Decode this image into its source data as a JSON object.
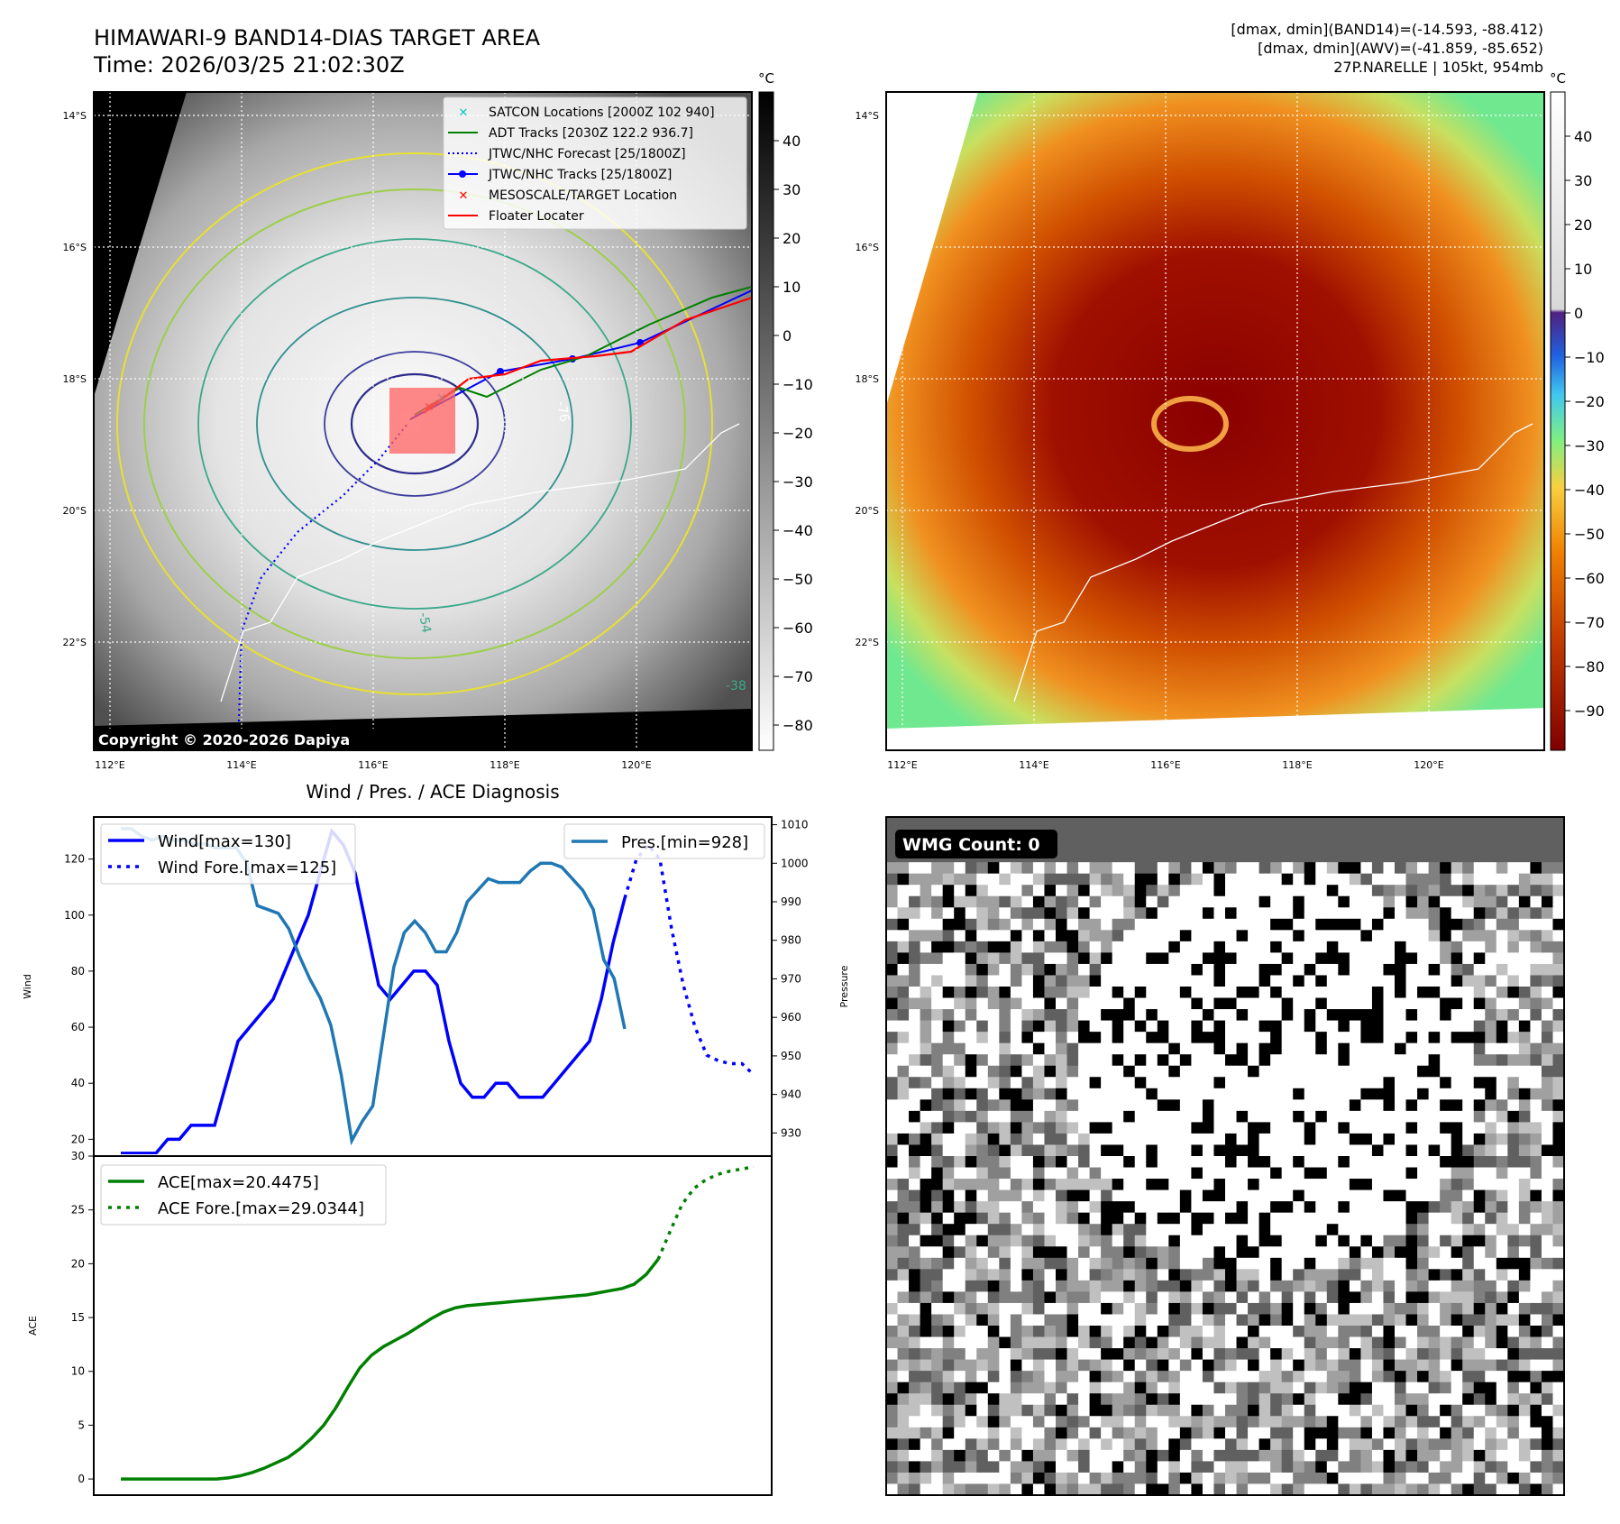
{
  "header": {
    "title_line1": "HIMAWARI-9 BAND14-DIAS TARGET AREA",
    "title_line2": "Time: 2026/03/25 21:02:30Z",
    "right_line1": "[dmax, dmin](BAND14)=(-14.593, -88.412)",
    "right_line2": "[dmax, dmin](AWV)=(-41.859, -85.652)",
    "right_line3": "27P.NARELLE | 105kt, 954mb"
  },
  "map_axes": {
    "lat_ticks": [
      "14°S",
      "16°S",
      "18°S",
      "20°S",
      "22°S"
    ],
    "lon_ticks": [
      "112°E",
      "114°E",
      "116°E",
      "118°E",
      "120°E"
    ]
  },
  "left_map": {
    "copyright": "Copyright © 2020-2026 Dapiya",
    "contour_labels": [
      "-76",
      "-54",
      "-38"
    ],
    "legend": [
      {
        "label": "SATCON Locations [2000Z 102 940]",
        "color": "#00c8c8",
        "marker": "x"
      },
      {
        "label": "ADT Tracks [2030Z 122.2 936.7]",
        "color": "#008000",
        "marker": "line"
      },
      {
        "label": "JTWC/NHC Forecast [25/1800Z]",
        "color": "#0000ff",
        "marker": "dotted"
      },
      {
        "label": "JTWC/NHC Tracks [25/1800Z]",
        "color": "#0000ff",
        "marker": "line-dot"
      },
      {
        "label": "MESOSCALE/TARGET Location",
        "color": "#ff0000",
        "marker": "x"
      },
      {
        "label": "Floater Locater",
        "color": "#ff0000",
        "marker": "line"
      }
    ]
  },
  "colorbar_gray": {
    "unit": "°C",
    "ticks": [
      "40",
      "30",
      "20",
      "10",
      "0",
      "−10",
      "−20",
      "−30",
      "−40",
      "−50",
      "−60",
      "−70",
      "−80"
    ]
  },
  "colorbar_color": {
    "unit": "°C",
    "ticks": [
      "40",
      "30",
      "20",
      "10",
      "0",
      "−10",
      "−20",
      "−30",
      "−40",
      "−50",
      "−60",
      "−70",
      "−80",
      "−90"
    ]
  },
  "wmg": {
    "label": "WMG Count: 0"
  },
  "chart_data": [
    {
      "type": "line",
      "title": "Wind / Pres. / ACE Diagnosis",
      "ylabel": "Wind",
      "y2label": "Pressure",
      "ylim": [
        14,
        135
      ],
      "y2lim": [
        924,
        1012
      ],
      "yticks": [
        "20",
        "40",
        "60",
        "80",
        "100",
        "120"
      ],
      "y2ticks": [
        "930",
        "940",
        "950",
        "960",
        "970",
        "980",
        "990",
        "1000",
        "1010"
      ],
      "legend_left": [
        "Wind[max=130]",
        "Wind Fore.[max=125]"
      ],
      "legend_right": [
        "Pres.[min=928]"
      ],
      "series": [
        {
          "name": "Wind[max=130]",
          "color": "#0000ff",
          "style": "solid",
          "values": [
            15,
            15,
            15,
            15,
            20,
            20,
            25,
            25,
            25,
            40,
            55,
            60,
            65,
            70,
            80,
            90,
            100,
            115,
            130,
            125,
            115,
            95,
            75,
            70,
            75,
            80,
            80,
            75,
            55,
            40,
            35,
            35,
            40,
            40,
            35,
            35,
            35,
            40,
            45,
            50,
            55,
            70,
            90,
            106
          ]
        },
        {
          "name": "Wind Fore.[max=125]",
          "color": "#0000ff",
          "style": "dotted",
          "values": [
            106,
            120,
            125,
            120,
            95,
            75,
            60,
            50,
            48,
            47,
            47,
            43
          ]
        },
        {
          "name": "Pres.[min=928]",
          "color": "#1f77b4",
          "style": "solid",
          "values": [
            1009,
            1009,
            1007,
            1006,
            1007,
            1006,
            1006,
            1005,
            1005,
            1004,
            1004,
            1004,
            1000,
            989,
            988,
            987,
            983,
            976,
            970,
            965,
            958,
            945,
            928,
            933,
            937,
            955,
            973,
            982,
            985,
            982,
            977,
            977,
            982,
            990,
            993,
            996,
            995,
            995,
            995,
            998,
            1000,
            1000,
            999,
            996,
            993,
            988,
            975,
            970,
            957
          ]
        }
      ]
    },
    {
      "type": "line",
      "ylabel": "ACE",
      "ylim": [
        -1.5,
        30
      ],
      "yticks": [
        "0",
        "5",
        "10",
        "15",
        "20",
        "25",
        "30"
      ],
      "legend": [
        "ACE[max=20.4475]",
        "ACE Fore.[max=29.0344]"
      ],
      "series": [
        {
          "name": "ACE[max=20.4475]",
          "color": "#008000",
          "style": "solid",
          "values": [
            0,
            0,
            0,
            0,
            0,
            0,
            0,
            0,
            0,
            0.1,
            0.3,
            0.6,
            1.0,
            1.5,
            2.0,
            2.8,
            3.8,
            5.0,
            6.6,
            8.5,
            10.3,
            11.5,
            12.3,
            12.9,
            13.5,
            14.2,
            14.9,
            15.5,
            15.9,
            16.1,
            16.2,
            16.3,
            16.4,
            16.5,
            16.6,
            16.7,
            16.8,
            16.9,
            17.0,
            17.1,
            17.3,
            17.5,
            17.7,
            18.1,
            19.0,
            20.4
          ]
        },
        {
          "name": "ACE Fore.[max=29.0344]",
          "color": "#008000",
          "style": "dotted",
          "values": [
            20.4,
            23.0,
            25.5,
            27.0,
            27.8,
            28.3,
            28.6,
            28.8,
            29.0
          ]
        }
      ]
    }
  ]
}
